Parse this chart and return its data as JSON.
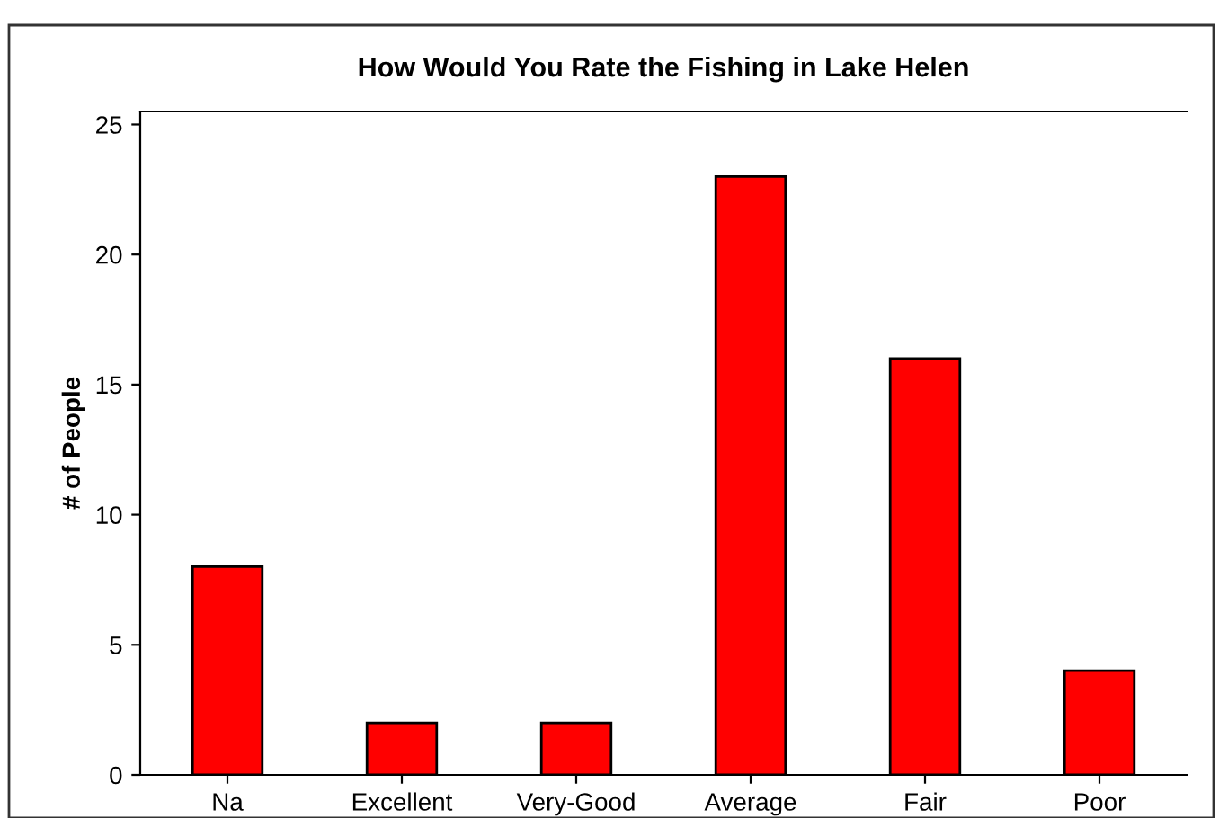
{
  "chart_data": {
    "type": "bar",
    "title": "How Would You Rate the Fishing in Lake Helen",
    "ylabel": "# of People",
    "categories": [
      "Na",
      "Excellent",
      "Very-Good",
      "Average",
      "Fair",
      "Poor"
    ],
    "values": [
      8,
      2,
      2,
      23,
      16,
      4
    ],
    "color": "#ff0000",
    "ylim": [
      0,
      25.5
    ],
    "yticks": [
      0,
      5,
      10,
      15,
      20,
      25
    ],
    "grid": false,
    "legend": false
  }
}
